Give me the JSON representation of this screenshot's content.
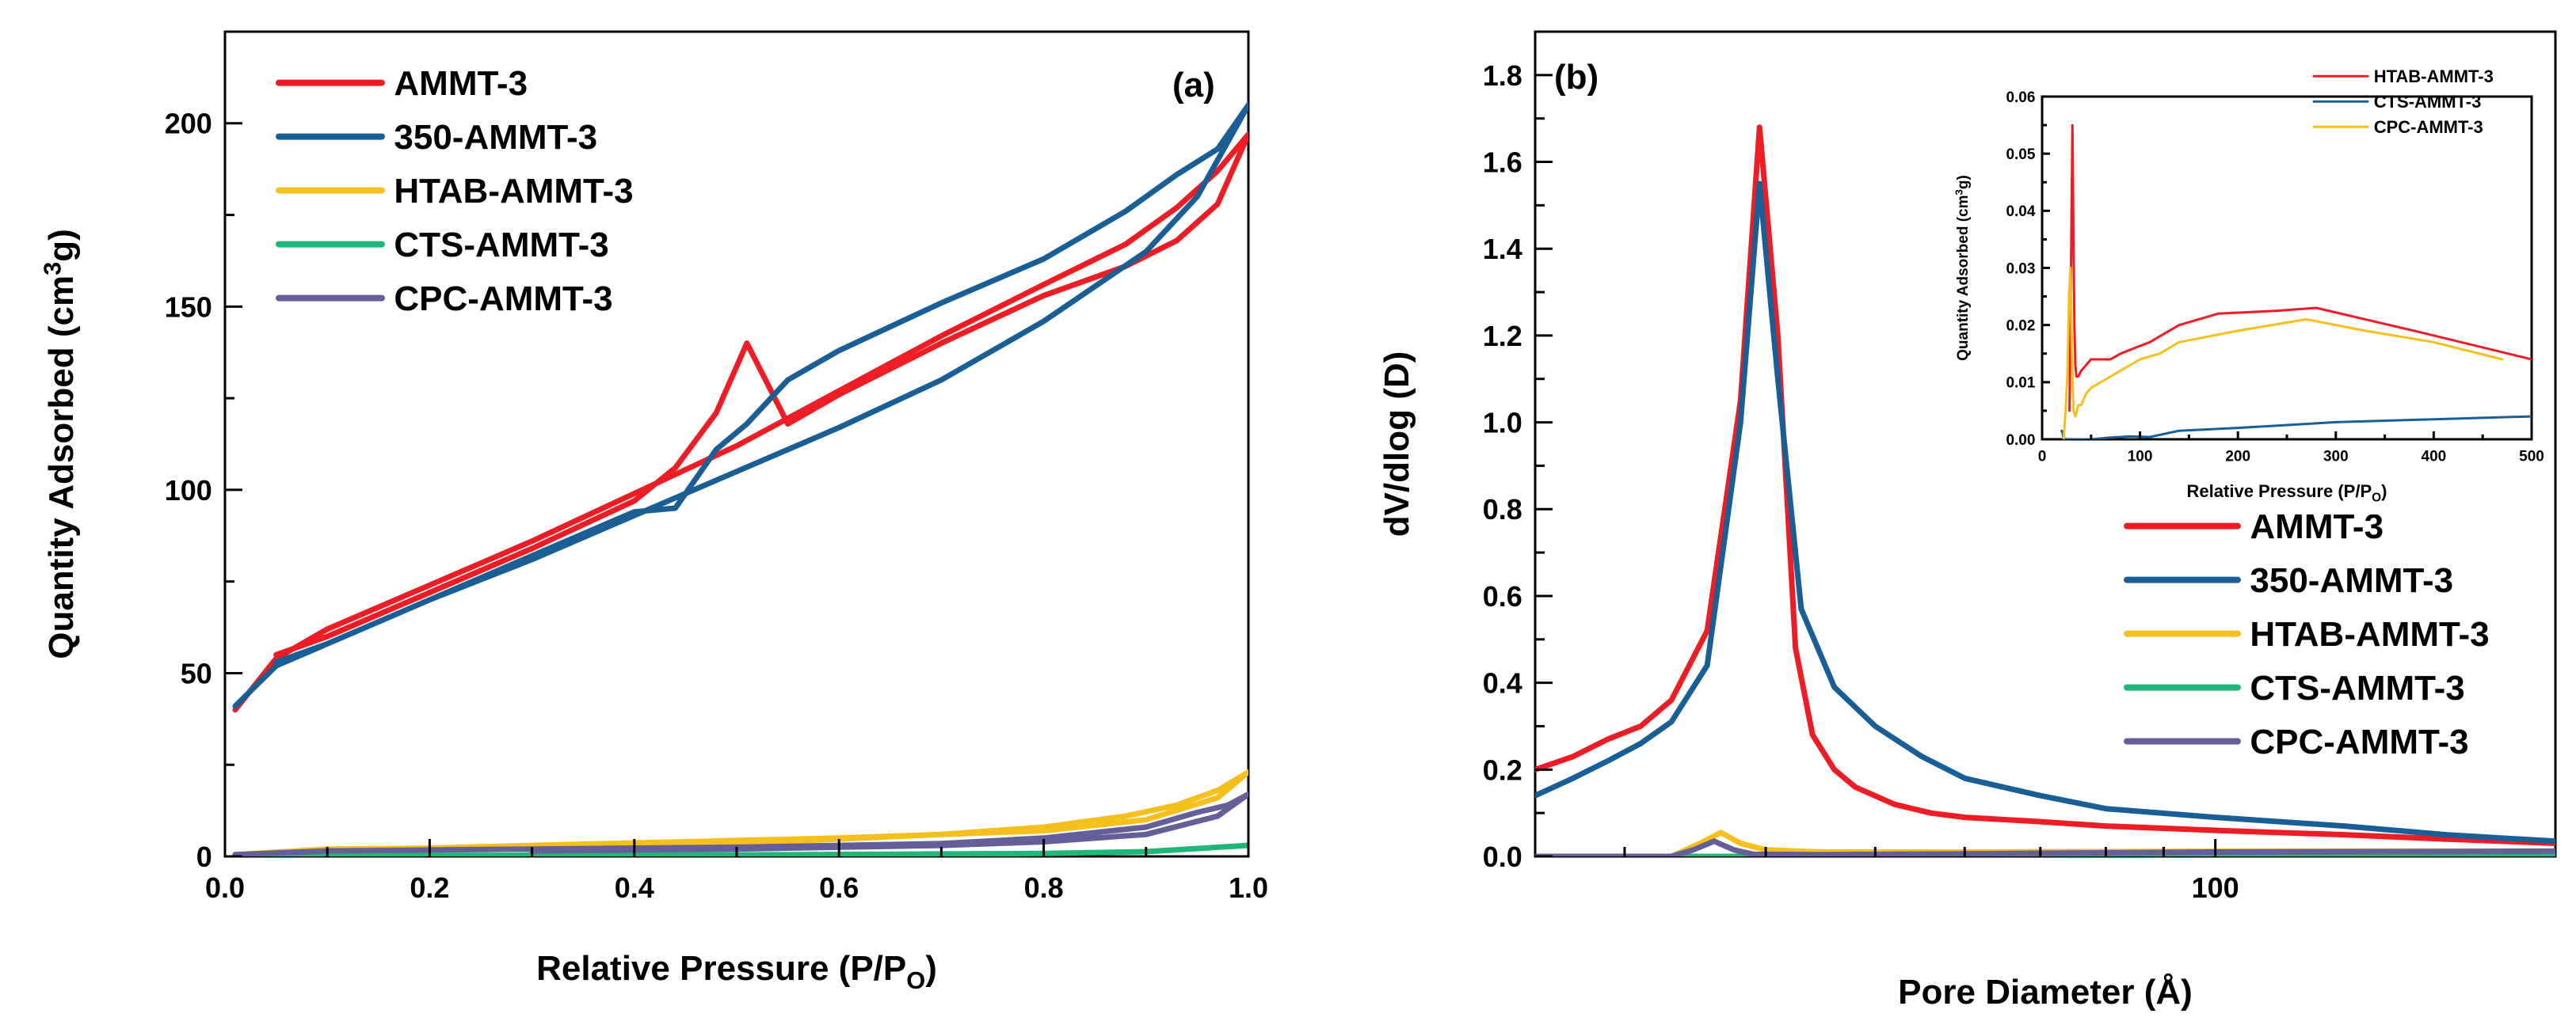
{
  "chart_data": [
    {
      "id": "a",
      "type": "line",
      "panel_label": "(a)",
      "xlabel_main": "Relative Pressure  (P/P",
      "xlabel_sub": "O",
      "xlabel_end": ")",
      "ylabel_main": "Quantity Adsorbed (cm",
      "ylabel_sup": "3",
      "ylabel_end": "g)",
      "xlim": [
        0,
        1.0
      ],
      "ylim": [
        0,
        225
      ],
      "xticks": [
        0.0,
        0.2,
        0.4,
        0.6,
        0.8,
        1.0
      ],
      "xtick_labels": [
        "0.0",
        "0.2",
        "0.4",
        "0.6",
        "0.8",
        "1.0"
      ],
      "yticks": [
        0,
        50,
        100,
        150,
        200
      ],
      "ytick_labels": [
        "0",
        "50",
        "100",
        "150",
        "200"
      ],
      "legend_position": "top-left",
      "series": [
        {
          "name": "AMMT-3",
          "color": "#ee1c24",
          "x": [
            0.01,
            0.05,
            0.1,
            0.2,
            0.3,
            0.4,
            0.5,
            0.6,
            0.7,
            0.8,
            0.88,
            0.93,
            0.97,
            1.0,
            0.97,
            0.93,
            0.88,
            0.8,
            0.7,
            0.6,
            0.55,
            0.51,
            0.48,
            0.44,
            0.4,
            0.3,
            0.2,
            0.1,
            0.05
          ],
          "y": [
            40,
            54,
            62,
            74,
            86,
            99,
            112,
            127,
            142,
            156,
            167,
            177,
            187,
            197,
            178,
            168,
            161,
            153,
            140,
            126,
            118,
            140,
            121,
            106,
            97,
            84,
            72,
            60,
            55
          ]
        },
        {
          "name": "350-AMMT-3",
          "color": "#1a5e96",
          "x": [
            0.01,
            0.05,
            0.1,
            0.2,
            0.3,
            0.4,
            0.5,
            0.6,
            0.7,
            0.8,
            0.9,
            0.95,
            1.0,
            0.97,
            0.93,
            0.88,
            0.8,
            0.7,
            0.6,
            0.55,
            0.51,
            0.48,
            0.44,
            0.4,
            0.3,
            0.2,
            0.1,
            0.05
          ],
          "y": [
            41,
            52,
            58,
            70,
            81,
            93,
            105,
            117,
            130,
            146,
            165,
            180,
            205,
            193,
            186,
            176,
            163,
            151,
            138,
            130,
            118,
            111,
            95,
            94,
            82,
            70,
            58,
            53
          ]
        },
        {
          "name": "HTAB-AMMT-3",
          "color": "#f5c01e",
          "x": [
            0.01,
            0.1,
            0.3,
            0.5,
            0.7,
            0.8,
            0.88,
            0.93,
            0.97,
            1.0,
            0.97,
            0.9,
            0.8,
            0.6,
            0.3,
            0.1
          ],
          "y": [
            0.5,
            2,
            2.5,
            3.5,
            6,
            8,
            11,
            14,
            18,
            23,
            16,
            10,
            7,
            5,
            3,
            1.5
          ]
        },
        {
          "name": "CTS-AMMT-3",
          "color": "#1fb878",
          "x": [
            0.01,
            0.5,
            0.8,
            0.9,
            1.0
          ],
          "y": [
            0.2,
            0.4,
            0.8,
            1.3,
            3
          ]
        },
        {
          "name": "CPC-AMMT-3",
          "color": "#645f98",
          "x": [
            0.01,
            0.1,
            0.3,
            0.5,
            0.7,
            0.8,
            0.9,
            0.95,
            0.98,
            1.0,
            0.97,
            0.9,
            0.8,
            0.7,
            0.5,
            0.3
          ],
          "y": [
            0.5,
            1.5,
            2,
            2.5,
            3.5,
            5,
            8,
            12,
            14,
            17,
            11,
            6,
            4,
            3,
            2,
            1.5
          ]
        }
      ]
    },
    {
      "id": "b",
      "type": "line",
      "panel_label": "(b)",
      "xlabel": "Pore Diameter (Å)",
      "ylabel": "dV/dlog (D)",
      "xscale": "log",
      "xlim": [
        25,
        200
      ],
      "ylim": [
        0,
        1.9
      ],
      "xticks": [
        100
      ],
      "xtick_labels": [
        "100"
      ],
      "yticks": [
        0.0,
        0.2,
        0.4,
        0.6,
        0.8,
        1.0,
        1.2,
        1.4,
        1.6,
        1.8
      ],
      "ytick_labels": [
        "0.0",
        "0.2",
        "0.4",
        "0.6",
        "0.8",
        "1.0",
        "1.2",
        "1.4",
        "1.6",
        "1.8"
      ],
      "legend_position": "bottom-right",
      "series": [
        {
          "name": "AMMT-3",
          "color": "#ee1c24",
          "x": [
            25,
            27,
            29,
            31,
            33,
            35.5,
            38,
            39.5,
            41,
            42.5,
            44,
            46,
            48,
            52,
            56,
            60,
            70,
            80,
            100,
            130,
            160,
            200
          ],
          "y": [
            0.2,
            0.23,
            0.27,
            0.3,
            0.36,
            0.52,
            1.05,
            1.68,
            1.2,
            0.48,
            0.28,
            0.2,
            0.16,
            0.12,
            0.1,
            0.09,
            0.08,
            0.07,
            0.06,
            0.05,
            0.04,
            0.03
          ]
        },
        {
          "name": "350-AMMT-3",
          "color": "#1a5e96",
          "x": [
            25,
            27,
            29,
            31,
            33,
            35.5,
            38,
            39.5,
            41,
            43,
            46,
            50,
            55,
            60,
            70,
            80,
            100,
            130,
            160,
            200
          ],
          "y": [
            0.14,
            0.18,
            0.22,
            0.26,
            0.31,
            0.44,
            1.0,
            1.55,
            1.1,
            0.57,
            0.39,
            0.3,
            0.23,
            0.18,
            0.14,
            0.11,
            0.09,
            0.07,
            0.05,
            0.035
          ]
        },
        {
          "name": "HTAB-AMMT-3",
          "color": "#f5c01e",
          "x": [
            25,
            33,
            35,
            36.5,
            38,
            40,
            45,
            60,
            100,
            200
          ],
          "y": [
            0,
            0,
            0.03,
            0.055,
            0.03,
            0.015,
            0.01,
            0.01,
            0.012,
            0.012
          ]
        },
        {
          "name": "CTS-AMMT-3",
          "color": "#1fb878",
          "x": [
            25,
            60,
            100,
            200
          ],
          "y": [
            0,
            0,
            0.002,
            0.005
          ]
        },
        {
          "name": "CPC-AMMT-3",
          "color": "#645f98",
          "x": [
            25,
            33,
            34.5,
            36,
            37.5,
            39,
            45,
            60,
            100,
            200
          ],
          "y": [
            0,
            0,
            0.015,
            0.035,
            0.015,
            0.005,
            0.004,
            0.006,
            0.01,
            0.012
          ]
        }
      ]
    },
    {
      "id": "b-inset",
      "type": "line",
      "xlabel_main": "Relative Pressure  (P/P",
      "xlabel_sub": "O",
      "xlabel_end": ")",
      "ylabel_main": "Quantity Adsorbed (cm",
      "ylabel_sup": "3",
      "ylabel_end": "g)",
      "xlim": [
        0,
        500
      ],
      "ylim": [
        0,
        0.06
      ],
      "xticks": [
        0,
        100,
        200,
        300,
        400,
        500
      ],
      "xtick_labels": [
        "0",
        "100",
        "200",
        "300",
        "400",
        "500"
      ],
      "yticks": [
        0.0,
        0.01,
        0.02,
        0.03,
        0.04,
        0.05,
        0.06
      ],
      "ytick_labels": [
        "0.00",
        "0.01",
        "0.02",
        "0.03",
        "0.04",
        "0.05",
        "0.06"
      ],
      "legend_position": "top-right",
      "series": [
        {
          "name": "HTAB-AMMT-3",
          "color": "#ee1c24",
          "x": [
            28,
            29.5,
            31,
            32,
            33,
            34,
            35,
            37,
            40,
            45,
            50,
            60,
            70,
            80,
            95,
            110,
            120,
            140,
            180,
            240,
            280,
            380,
            500
          ],
          "y": [
            0.005,
            0.03,
            0.055,
            0.035,
            0.02,
            0.013,
            0.011,
            0.011,
            0.012,
            0.013,
            0.014,
            0.014,
            0.014,
            0.015,
            0.016,
            0.017,
            0.018,
            0.02,
            0.022,
            0.0225,
            0.023,
            0.019,
            0.014
          ]
        },
        {
          "name": "CTS-AMMT-3",
          "color": "#1a5e96",
          "x": [
            20,
            21,
            22,
            25,
            30,
            50,
            70,
            90,
            110,
            140,
            200,
            300,
            400,
            500
          ],
          "y": [
            0.0015,
            0.001,
            0.0002,
            0,
            0,
            0,
            0.0003,
            0.0005,
            0.0004,
            0.0015,
            0.002,
            0.003,
            0.0035,
            0.004
          ]
        },
        {
          "name": "CPC-AMMT-3",
          "color": "#f5c01e",
          "x": [
            22,
            24,
            26,
            27.5,
            29,
            30.5,
            32,
            34,
            37,
            40,
            45,
            50,
            60,
            80,
            100,
            120,
            140,
            200,
            270,
            330,
            400,
            470
          ],
          "y": [
            0,
            0.005,
            0.012,
            0.025,
            0.03,
            0.015,
            0.005,
            0.004,
            0.006,
            0.006,
            0.008,
            0.009,
            0.01,
            0.012,
            0.014,
            0.015,
            0.017,
            0.019,
            0.021,
            0.019,
            0.017,
            0.014
          ]
        }
      ]
    }
  ]
}
